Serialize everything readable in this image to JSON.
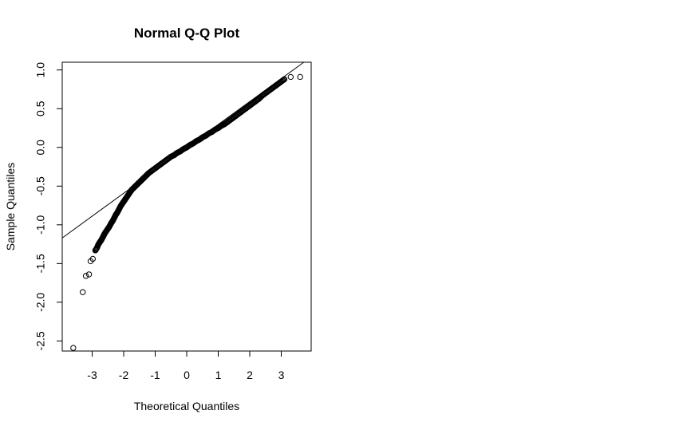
{
  "chart_data": {
    "type": "scatter",
    "title": "Normal Q-Q Plot",
    "xlabel": "Theoretical Quantiles",
    "ylabel": "Sample Quantiles",
    "xlim": [
      -3.95,
      3.95
    ],
    "ylim": [
      -2.63,
      1.1
    ],
    "x_ticks": [
      -3,
      -2,
      -1,
      0,
      1,
      2,
      3
    ],
    "x_tick_labels": [
      "-3",
      "-2",
      "-1",
      "0",
      "1",
      "2",
      "3"
    ],
    "y_ticks": [
      -2.5,
      -2.0,
      -1.5,
      -1.0,
      -0.5,
      0.0,
      0.5,
      1.0
    ],
    "y_tick_labels": [
      "-2.5",
      "-2.0",
      "-1.5",
      "-1.0",
      "-0.5",
      "0.0",
      "0.5",
      "1.0"
    ],
    "grid": false,
    "legend": false,
    "reference_line": {
      "intercept": 0.0,
      "slope": 0.296
    },
    "marker": "open-circle",
    "color": "#000000",
    "points": {
      "x": [
        -3.6,
        -3.3,
        -3.2,
        -3.1,
        -3.05,
        -2.98,
        -2.9,
        -2.85,
        -2.8,
        -2.75,
        -2.7,
        -2.65,
        -2.6,
        -2.55,
        -2.5,
        -2.45,
        -2.4,
        -2.35,
        -2.3,
        -2.25,
        -2.2,
        -2.15,
        -2.1,
        -2.05,
        -2.0,
        -1.95,
        -1.9,
        -1.85,
        -1.8,
        -1.75,
        -1.7,
        -1.65,
        -1.6,
        -1.55,
        -1.5,
        -1.45,
        -1.4,
        -1.35,
        -1.3,
        -1.25,
        -1.2,
        -1.1,
        -1.0,
        -0.9,
        -0.8,
        -0.7,
        -0.6,
        -0.5,
        -0.4,
        -0.3,
        -0.2,
        -0.1,
        0.0,
        0.1,
        0.2,
        0.3,
        0.4,
        0.5,
        0.6,
        0.7,
        0.8,
        0.9,
        1.0,
        1.1,
        1.2,
        1.3,
        1.4,
        1.5,
        1.6,
        1.7,
        1.8,
        1.9,
        2.0,
        2.1,
        2.2,
        2.3,
        2.4,
        2.5,
        2.6,
        2.7,
        2.8,
        2.9,
        3.0,
        3.1,
        3.3,
        3.6
      ],
      "y": [
        -2.59,
        -1.87,
        -1.66,
        -1.64,
        -1.47,
        -1.44,
        -1.33,
        -1.3,
        -1.25,
        -1.22,
        -1.19,
        -1.15,
        -1.11,
        -1.08,
        -1.05,
        -1.02,
        -0.98,
        -0.95,
        -0.91,
        -0.87,
        -0.84,
        -0.8,
        -0.76,
        -0.73,
        -0.7,
        -0.67,
        -0.64,
        -0.61,
        -0.58,
        -0.55,
        -0.53,
        -0.51,
        -0.49,
        -0.47,
        -0.45,
        -0.43,
        -0.41,
        -0.39,
        -0.37,
        -0.35,
        -0.33,
        -0.3,
        -0.27,
        -0.24,
        -0.21,
        -0.18,
        -0.15,
        -0.12,
        -0.1,
        -0.07,
        -0.05,
        -0.02,
        0.0,
        0.03,
        0.05,
        0.08,
        0.1,
        0.13,
        0.15,
        0.18,
        0.2,
        0.23,
        0.25,
        0.28,
        0.3,
        0.33,
        0.36,
        0.39,
        0.42,
        0.45,
        0.48,
        0.51,
        0.54,
        0.57,
        0.6,
        0.63,
        0.67,
        0.7,
        0.73,
        0.76,
        0.79,
        0.82,
        0.85,
        0.88,
        0.91,
        0.91
      ]
    }
  }
}
